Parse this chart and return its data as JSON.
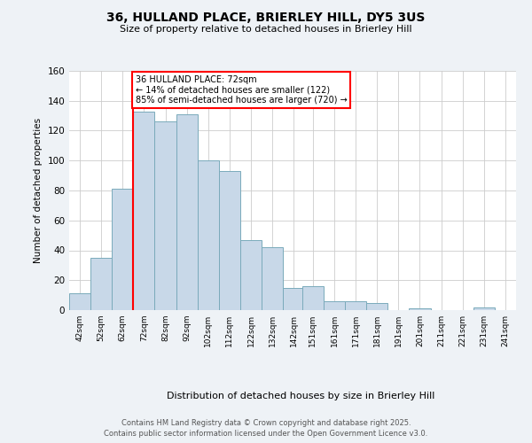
{
  "title1": "36, HULLAND PLACE, BRIERLEY HILL, DY5 3US",
  "title2": "Size of property relative to detached houses in Brierley Hill",
  "xlabel": "Distribution of detached houses by size in Brierley Hill",
  "ylabel": "Number of detached properties",
  "footnote1": "Contains HM Land Registry data © Crown copyright and database right 2025.",
  "footnote2": "Contains public sector information licensed under the Open Government Licence v3.0.",
  "bar_color": "#c8d8e8",
  "bar_edge_color": "#7aaabb",
  "vline_color": "red",
  "vline_x": 72,
  "annotation_text": "36 HULLAND PLACE: 72sqm\n← 14% of detached houses are smaller (122)\n85% of semi-detached houses are larger (720) →",
  "annotation_box_color": "white",
  "annotation_box_edge": "red",
  "categories": [
    "42sqm",
    "52sqm",
    "62sqm",
    "72sqm",
    "82sqm",
    "92sqm",
    "102sqm",
    "112sqm",
    "122sqm",
    "132sqm",
    "142sqm",
    "151sqm",
    "161sqm",
    "171sqm",
    "181sqm",
    "191sqm",
    "201sqm",
    "211sqm",
    "221sqm",
    "231sqm",
    "241sqm"
  ],
  "bin_edges": [
    42,
    52,
    62,
    72,
    82,
    92,
    102,
    112,
    122,
    132,
    142,
    151,
    161,
    171,
    181,
    191,
    201,
    211,
    221,
    231,
    241
  ],
  "bin_width": 10,
  "values": [
    11,
    35,
    81,
    133,
    126,
    131,
    100,
    93,
    47,
    42,
    15,
    16,
    6,
    6,
    5,
    0,
    1,
    0,
    0,
    2
  ],
  "ylim": [
    0,
    160
  ],
  "yticks": [
    0,
    20,
    40,
    60,
    80,
    100,
    120,
    140,
    160
  ],
  "bg_color": "#eef2f6",
  "plot_bg_color": "white"
}
